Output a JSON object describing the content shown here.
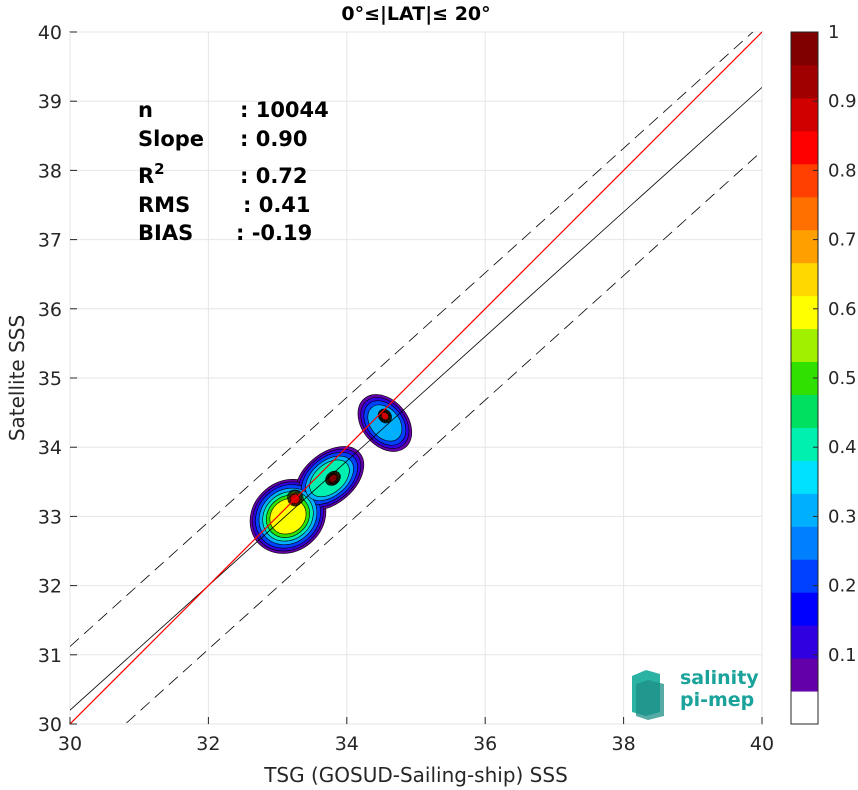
{
  "chart_data": {
    "type": "density",
    "title": "0°≤|LAT|≤ 20°",
    "xlabel": "TSG (GOSUD-Sailing-ship) SSS",
    "ylabel": "Satellite SSS",
    "xlim": [
      30,
      40
    ],
    "ylim": [
      30,
      40
    ],
    "xticks": [
      "30",
      "32",
      "34",
      "36",
      "38",
      "40"
    ],
    "yticks": [
      "30",
      "31",
      "32",
      "33",
      "34",
      "35",
      "36",
      "37",
      "38",
      "39",
      "40"
    ],
    "grid": true,
    "stats": [
      {
        "key": "n",
        "value": ": 10044"
      },
      {
        "key": "Slope",
        "value": ": 0.90"
      },
      {
        "key": "R",
        "sup": "2",
        "value": ": 0.72"
      },
      {
        "key": "RMS",
        "value": ": 0.41"
      },
      {
        "key": "BIAS",
        "value": ": -0.19"
      }
    ],
    "identity_line": {
      "color": "#ff0000",
      "x": [
        30,
        40
      ],
      "y": [
        30,
        40
      ]
    },
    "fit_line": {
      "slope": 0.9,
      "intercept": 3.2,
      "color": "#000000"
    },
    "fit_band_offset": 0.92,
    "colorbar": {
      "min": 0,
      "max": 1,
      "ticks": [
        "0.1",
        "0.2",
        "0.3",
        "0.4",
        "0.5",
        "0.6",
        "0.7",
        "0.8",
        "0.9",
        "1"
      ],
      "colors": [
        "#ffffff",
        "#6400aa",
        "#3000e0",
        "#0000ff",
        "#0040ff",
        "#0080ff",
        "#00b0ff",
        "#00e0ff",
        "#00f0b0",
        "#00e060",
        "#30e000",
        "#a0f000",
        "#ffff00",
        "#ffd800",
        "#ffa000",
        "#ff7000",
        "#ff4000",
        "#ff0000",
        "#d00000",
        "#a00000",
        "#800000"
      ]
    },
    "density_blobs": [
      {
        "cx": 33.15,
        "cy": 33.0,
        "rx": 0.55,
        "ry": 0.48,
        "level": 0.6
      },
      {
        "cx": 33.75,
        "cy": 33.55,
        "rx": 0.55,
        "ry": 0.35,
        "level": 0.45
      },
      {
        "cx": 34.55,
        "cy": 34.35,
        "rx": 0.32,
        "ry": 0.45,
        "level": 0.35
      },
      {
        "cx": 33.25,
        "cy": 33.25,
        "rx": 0.15,
        "ry": 0.15,
        "level": 0.9
      },
      {
        "cx": 33.8,
        "cy": 33.55,
        "rx": 0.14,
        "ry": 0.11,
        "level": 1.0
      },
      {
        "cx": 34.55,
        "cy": 34.45,
        "rx": 0.1,
        "ry": 0.12,
        "level": 0.95
      }
    ]
  },
  "logo": {
    "line1": "salinity",
    "line2": "pi-mep"
  }
}
